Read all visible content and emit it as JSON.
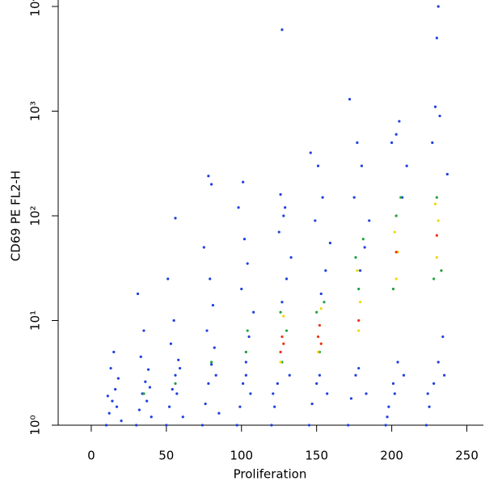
{
  "chart_data": {
    "type": "scatter",
    "xlabel": "Proliferation",
    "ylabel": "CD69 PE FL2-H",
    "xlim": [
      -22,
      261
    ],
    "xticks": [
      0,
      50,
      100,
      150,
      200,
      250
    ],
    "ylim": [
      1,
      10000
    ],
    "yscale": "log",
    "yticks": [
      {
        "value": 1,
        "label": "10⁰"
      },
      {
        "value": 10,
        "label": "10¹"
      },
      {
        "value": 100,
        "label": "10²"
      },
      {
        "value": 1000,
        "label": "10³"
      },
      {
        "value": 10000,
        "label": "10⁴"
      }
    ],
    "series": [
      {
        "color": "#1f3fe0",
        "x": [
          10,
          12,
          14,
          16,
          18,
          20,
          13,
          17,
          15,
          11,
          30,
          32,
          34,
          36,
          38,
          40,
          33,
          37,
          35,
          31,
          39,
          50,
          52,
          54,
          56,
          58,
          61,
          53,
          57,
          55,
          51,
          59,
          56,
          74,
          76,
          78,
          80,
          82,
          85,
          77,
          81,
          79,
          75,
          83,
          80,
          78,
          97,
          99,
          101,
          103,
          105,
          108,
          100,
          104,
          102,
          98,
          106,
          103,
          101,
          120,
          122,
          124,
          127,
          130,
          133,
          125,
          129,
          126,
          121,
          132,
          127,
          128,
          145,
          147,
          150,
          153,
          156,
          159,
          149,
          154,
          151,
          146,
          157,
          152,
          171,
          173,
          176,
          179,
          182,
          185,
          175,
          180,
          177,
          172,
          183,
          178,
          196,
          198,
          201,
          204,
          207,
          210,
          200,
          205,
          202,
          197,
          208,
          203,
          223,
          225,
          228,
          231,
          234,
          237,
          227,
          232,
          229,
          224,
          235,
          230,
          231
        ],
        "y": [
          1,
          1.3,
          1.7,
          2.2,
          2.8,
          1.1,
          3.5,
          1.5,
          5,
          1.9,
          1,
          1.4,
          2,
          2.6,
          3.4,
          1.2,
          4.5,
          1.7,
          8,
          18,
          2.3,
          1,
          1.5,
          2.2,
          3,
          4.2,
          1.2,
          6,
          2,
          10,
          25,
          3.5,
          95,
          1,
          1.6,
          2.5,
          3.8,
          5.5,
          1.3,
          8,
          14,
          25,
          50,
          3,
          200,
          240,
          1,
          1.5,
          2.5,
          4,
          7,
          12,
          20,
          35,
          60,
          120,
          2,
          3,
          210,
          1,
          1.5,
          2.5,
          15,
          25,
          40,
          70,
          120,
          160,
          2,
          3,
          6000,
          100,
          1,
          1.6,
          2.5,
          18,
          30,
          55,
          90,
          150,
          300,
          400,
          2,
          3,
          1,
          1.8,
          3,
          30,
          50,
          90,
          150,
          300,
          500,
          1300,
          2,
          3.5,
          1,
          1.5,
          2.5,
          4,
          150,
          300,
          500,
          800,
          2,
          1.2,
          3,
          600,
          1,
          1.5,
          2.5,
          4,
          7,
          250,
          500,
          900,
          1100,
          2,
          3,
          5000,
          10000
        ]
      },
      {
        "color": "#1ea23c",
        "x": [
          103,
          104,
          127,
          126,
          130,
          152,
          150,
          155,
          178,
          176,
          181,
          203,
          201,
          206,
          230,
          228,
          233,
          35,
          56,
          80
        ],
        "y": [
          5,
          8,
          4,
          12,
          8,
          5,
          12,
          15,
          20,
          40,
          60,
          100,
          20,
          150,
          150,
          25,
          30,
          2,
          2.5,
          4
        ]
      },
      {
        "color": "#f0d800",
        "x": [
          126,
          128,
          151,
          153,
          178,
          179,
          177,
          203,
          202,
          204,
          230,
          231,
          229
        ],
        "y": [
          4,
          11,
          5,
          13,
          8,
          15,
          30,
          25,
          70,
          45,
          40,
          90,
          130
        ]
      },
      {
        "color": "#f03010",
        "x": [
          126,
          127,
          128,
          151,
          152,
          153,
          178,
          203,
          230
        ],
        "y": [
          5,
          7,
          6,
          7,
          9,
          6,
          10,
          45,
          65
        ]
      }
    ]
  }
}
